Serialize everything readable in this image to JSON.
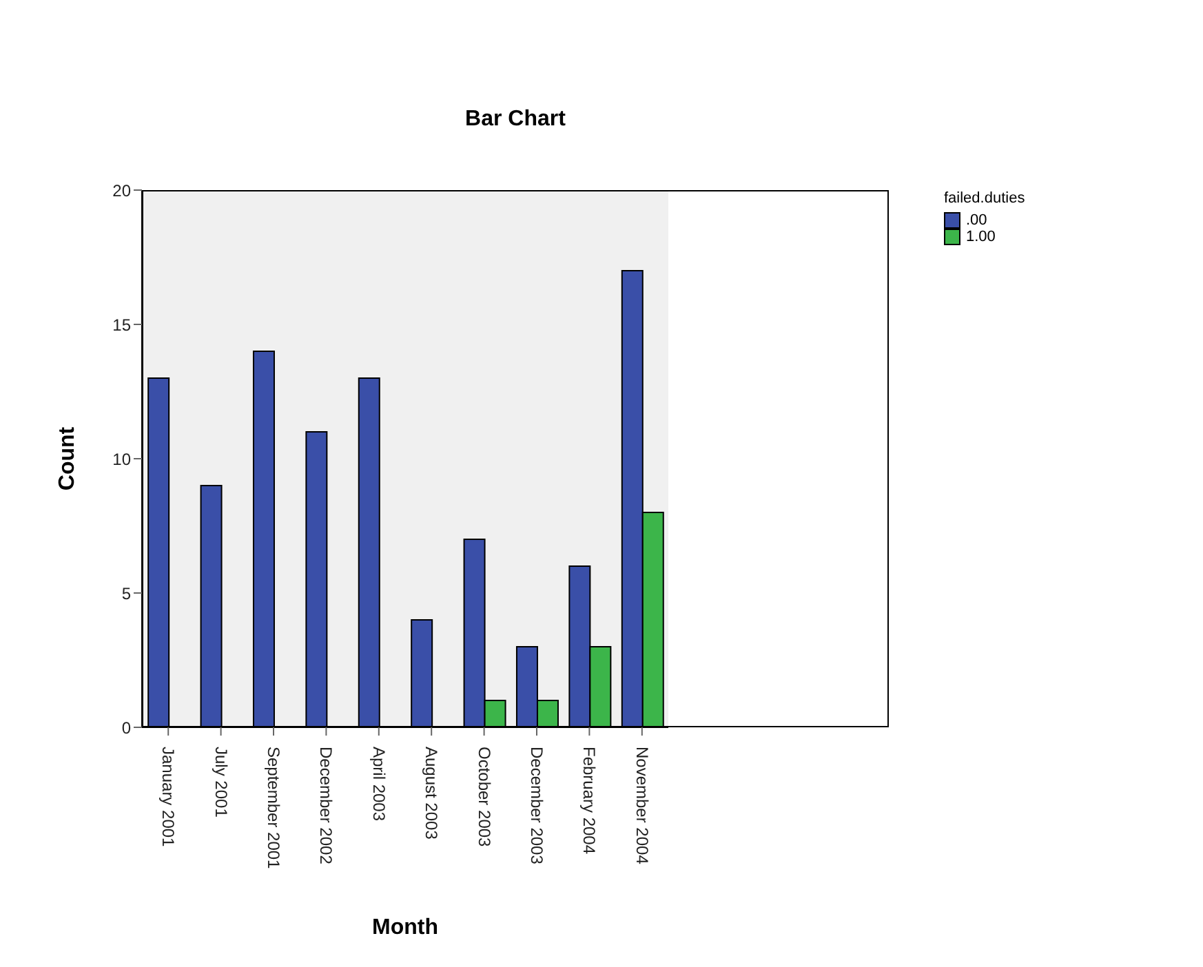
{
  "chart_data": {
    "type": "bar",
    "title": "Bar Chart",
    "xlabel": "Month",
    "ylabel": "Count",
    "legend_title": "failed.duties",
    "legend": "top right",
    "categories": [
      "January 2001",
      "July 2001",
      "September 2001",
      "December 2002",
      "April 2003",
      "August 2003",
      "October 2003",
      "December 2003",
      "February 2004",
      "November 2004"
    ],
    "series": [
      {
        "name": ".00",
        "color": "#3a4fa8",
        "values": [
          13,
          9,
          14,
          11,
          13,
          4,
          7,
          3,
          6,
          17
        ]
      },
      {
        "name": "1.00",
        "color": "#3cb54a",
        "values": [
          0,
          0,
          0,
          0,
          0,
          0,
          1,
          1,
          3,
          8
        ]
      }
    ],
    "ylim": [
      0,
      20
    ],
    "yticks": [
      0,
      5,
      10,
      15,
      20
    ]
  }
}
